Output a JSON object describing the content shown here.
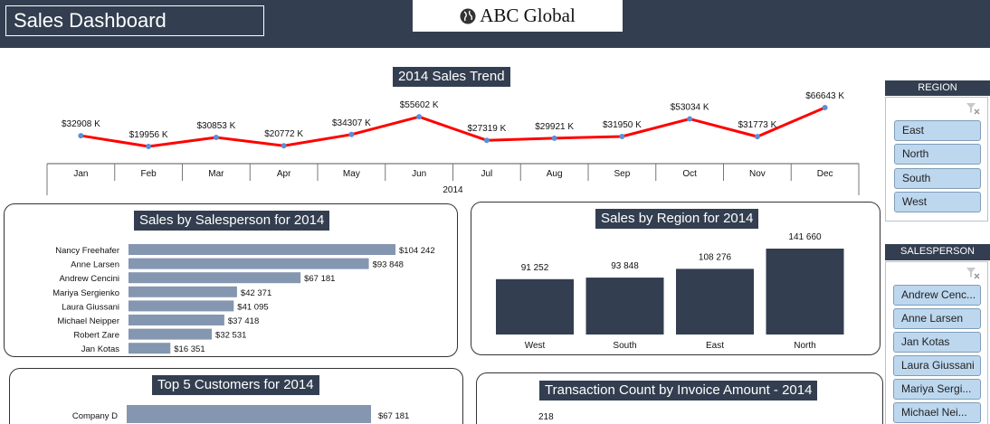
{
  "header": {
    "title": "Sales Dashboard",
    "logo_text": "ABC Global"
  },
  "trend": {
    "title": "2014 Sales Trend",
    "year_label": "2014"
  },
  "salesperson_chart": {
    "title": "Sales by Salesperson for 2014"
  },
  "region_chart": {
    "title": "Sales by Region for 2014"
  },
  "customers_chart": {
    "title": "Top 5 Customers for 2014"
  },
  "transaction_chart": {
    "title": "Transaction Count by Invoice Amount - 2014"
  },
  "slicers": {
    "region": {
      "header": "REGION",
      "items": [
        "East",
        "North",
        "South",
        "West"
      ]
    },
    "salesperson": {
      "header": "SALESPERSON",
      "items": [
        "Andrew Cenc...",
        "Anne Larsen",
        "Jan Kotas",
        "Laura Giussani",
        "Mariya Sergi...",
        "Michael Nei..."
      ]
    }
  },
  "colors": {
    "header_bg": "#333f50",
    "trend_line": "#ff0000",
    "trend_marker": "#5b8fd6",
    "salesperson_bar": "#8496b0",
    "region_bar": "#333f50",
    "slicer_item": "#bdd7ee"
  },
  "chart_data": [
    {
      "type": "line",
      "title": "2014 Sales Trend",
      "categories": [
        "Jan",
        "Feb",
        "Mar",
        "Apr",
        "May",
        "Jun",
        "Jul",
        "Aug",
        "Sep",
        "Oct",
        "Nov",
        "Dec"
      ],
      "values": [
        32908,
        19956,
        30853,
        20772,
        34307,
        55602,
        27319,
        29921,
        31950,
        53034,
        31773,
        66643
      ],
      "labels": [
        "$32908 K",
        "$19956 K",
        "$30853 K",
        "$20772 K",
        "$34307 K",
        "$55602 K",
        "$27319 K",
        "$29921 K",
        "$31950 K",
        "$53034 K",
        "$31773 K",
        "$66643 K"
      ],
      "xlabel": "2014"
    },
    {
      "type": "bar",
      "orientation": "horizontal",
      "title": "Sales by Salesperson for 2014",
      "categories": [
        "Nancy Freehafer",
        "Anne Larsen",
        "Andrew Cencini",
        "Mariya Sergienko",
        "Laura Giussani",
        "Michael Neipper",
        "Robert Zare",
        "Jan Kotas"
      ],
      "values": [
        104242,
        93848,
        67181,
        42371,
        41095,
        37418,
        32531,
        16351
      ],
      "labels": [
        "$104 242",
        "$93 848",
        "$67 181",
        "$42 371",
        "$41 095",
        "$37 418",
        "$32 531",
        "$16 351"
      ]
    },
    {
      "type": "bar",
      "title": "Sales by Region for 2014",
      "categories": [
        "West",
        "South",
        "East",
        "North"
      ],
      "values": [
        91252,
        93848,
        108276,
        141660
      ],
      "labels": [
        "91 252",
        "93 848",
        "108 276",
        "141 660"
      ]
    },
    {
      "type": "bar",
      "orientation": "horizontal",
      "title": "Top 5 Customers for 2014",
      "categories": [
        "Company D"
      ],
      "values": [
        67181
      ],
      "labels": [
        "$67 181"
      ]
    },
    {
      "type": "bar",
      "title": "Transaction Count by Invoice Amount - 2014",
      "labels": [
        "218"
      ]
    }
  ]
}
